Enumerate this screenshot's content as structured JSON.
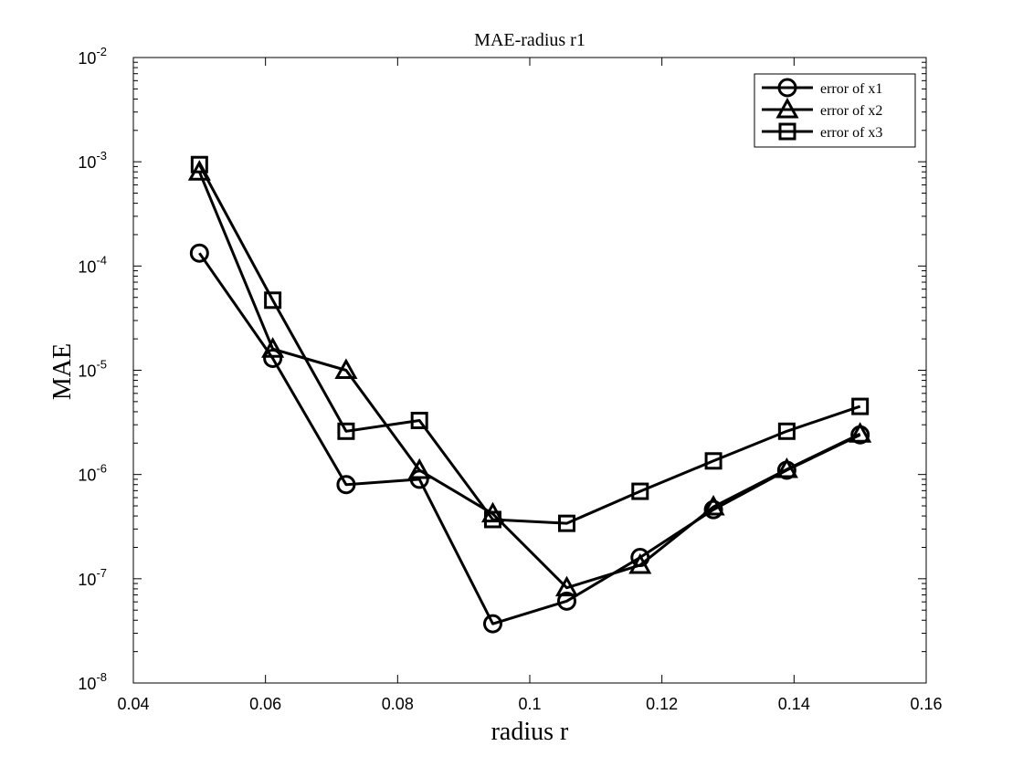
{
  "chart_data": {
    "type": "line",
    "title": "MAE-radius r1",
    "xlabel": "radius r",
    "ylabel": "MAE",
    "xlim": [
      0.04,
      0.16
    ],
    "ylim": [
      1e-08,
      0.01
    ],
    "yscale": "log",
    "x_ticks": [
      "0.04",
      "0.06",
      "0.08",
      "0.1",
      "0.12",
      "0.14",
      "0.16"
    ],
    "y_ticks": [
      {
        "base": "10",
        "exp": "-8"
      },
      {
        "base": "10",
        "exp": "-7"
      },
      {
        "base": "10",
        "exp": "-6"
      },
      {
        "base": "10",
        "exp": "-5"
      },
      {
        "base": "10",
        "exp": "-4"
      },
      {
        "base": "10",
        "exp": "-3"
      },
      {
        "base": "10",
        "exp": "-2"
      }
    ],
    "grid": false,
    "legend_position": "top-right",
    "x": [
      0.05,
      0.0611,
      0.0722,
      0.0833,
      0.0944,
      0.1056,
      0.1167,
      0.1278,
      0.1389,
      0.15
    ],
    "series": [
      {
        "name": "error of x1",
        "marker": "circle",
        "values": [
          0.000133,
          1.3e-05,
          8e-07,
          9e-07,
          3.7e-08,
          6.1e-08,
          1.6e-07,
          4.6e-07,
          1.1e-06,
          2.4e-06
        ]
      },
      {
        "name": "error of x2",
        "marker": "triangle",
        "values": [
          0.0008,
          1.6e-05,
          1e-05,
          1.1e-06,
          4.2e-07,
          8.2e-08,
          1.35e-07,
          4.9e-07,
          1.12e-06,
          2.45e-06
        ]
      },
      {
        "name": "error of x3",
        "marker": "square",
        "values": [
          0.00094,
          4.7e-05,
          2.6e-06,
          3.3e-06,
          3.7e-07,
          3.4e-07,
          6.9e-07,
          1.35e-06,
          2.6e-06,
          4.5e-06
        ]
      }
    ],
    "line_color": "#000000"
  }
}
